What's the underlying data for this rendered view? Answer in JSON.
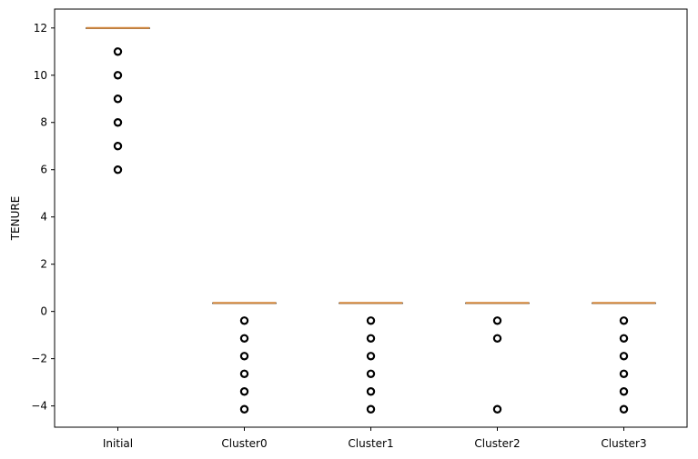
{
  "chart_data": {
    "type": "boxplot",
    "title": "",
    "xlabel": "",
    "ylabel": "TENURE",
    "ylim": [
      -4.9,
      12.8
    ],
    "yticks": [
      -4,
      -2,
      0,
      2,
      4,
      6,
      8,
      10,
      12
    ],
    "categories": [
      "Initial",
      "Cluster0",
      "Cluster1",
      "Cluster2",
      "Cluster3"
    ],
    "grid": false,
    "legend": "none",
    "box_color": "#000000",
    "median_color": "#d2863a",
    "series": [
      {
        "q1": 12,
        "median": 12,
        "q3": 12,
        "whisker_low": 12,
        "whisker_high": 12,
        "outliers": [
          6,
          7,
          8,
          9,
          10,
          11
        ]
      },
      {
        "q1": 0.36,
        "median": 0.36,
        "q3": 0.36,
        "whisker_low": 0.36,
        "whisker_high": 0.36,
        "outliers": [
          -0.39,
          -1.14,
          -1.89,
          -2.64,
          -3.39,
          -4.14
        ]
      },
      {
        "q1": 0.36,
        "median": 0.36,
        "q3": 0.36,
        "whisker_low": 0.36,
        "whisker_high": 0.36,
        "outliers": [
          -0.39,
          -1.14,
          -1.89,
          -2.64,
          -3.39,
          -4.14
        ]
      },
      {
        "q1": 0.36,
        "median": 0.36,
        "q3": 0.36,
        "whisker_low": 0.36,
        "whisker_high": 0.36,
        "outliers": [
          -0.39,
          -1.14,
          -4.14
        ]
      },
      {
        "q1": 0.36,
        "median": 0.36,
        "q3": 0.36,
        "whisker_low": 0.36,
        "whisker_high": 0.36,
        "outliers": [
          -0.39,
          -1.14,
          -1.89,
          -2.64,
          -3.39,
          -4.14
        ]
      }
    ]
  }
}
